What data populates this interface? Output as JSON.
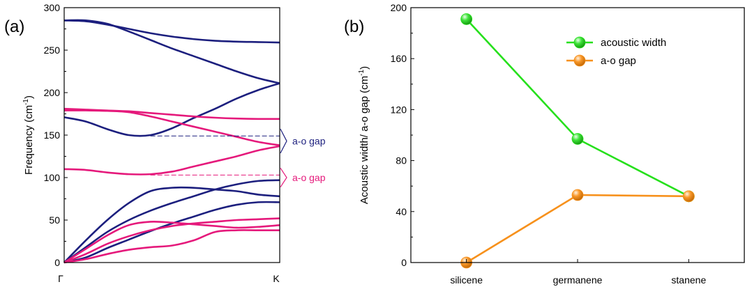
{
  "chart_data": [
    {
      "panel_label": "(a)",
      "type": "line",
      "ylabel": "Frequency (cm",
      "ylabel_sup": "-1",
      "ylabel_close": ")",
      "ylim": [
        0,
        300
      ],
      "yticks": [
        "0",
        "50",
        "100",
        "150",
        "200",
        "250",
        "300"
      ],
      "xticks": [
        "Γ",
        "K"
      ],
      "colors": {
        "navy": "#1c1f7e",
        "magenta": "#e5197b"
      },
      "series": [
        {
          "color": "navy",
          "x": [
            0,
            0.1,
            0.2,
            0.3,
            0.4,
            0.5,
            0.6,
            0.7,
            0.8,
            0.9,
            1.0
          ],
          "y": [
            285,
            284,
            280,
            275,
            270,
            266,
            263,
            261,
            260,
            259.5,
            259
          ]
        },
        {
          "color": "navy",
          "x": [
            0,
            0.1,
            0.2,
            0.3,
            0.4,
            0.5,
            0.6,
            0.7,
            0.8,
            0.9,
            1.0
          ],
          "y": [
            285,
            285,
            281,
            272,
            262,
            252,
            243,
            234,
            225,
            217,
            211
          ]
        },
        {
          "color": "navy",
          "x": [
            0,
            0.1,
            0.2,
            0.3,
            0.4,
            0.5,
            0.6,
            0.7,
            0.8,
            0.9,
            1.0
          ],
          "y": [
            171,
            166,
            157,
            150,
            150,
            158,
            170,
            181,
            193,
            203,
            211
          ]
        },
        {
          "color": "magenta",
          "x": [
            0,
            0.1,
            0.2,
            0.3,
            0.4,
            0.5,
            0.6,
            0.7,
            0.8,
            0.9,
            1.0
          ],
          "y": [
            181,
            180,
            179,
            178,
            176,
            174,
            172,
            170.5,
            169.5,
            169,
            169
          ]
        },
        {
          "color": "magenta",
          "x": [
            0,
            0.1,
            0.2,
            0.3,
            0.4,
            0.5,
            0.6,
            0.7,
            0.8,
            0.9,
            1.0
          ],
          "y": [
            179,
            179,
            178.5,
            177,
            172,
            166,
            160,
            154,
            148,
            142,
            138
          ]
        },
        {
          "color": "magenta",
          "x": [
            0,
            0.1,
            0.2,
            0.3,
            0.4,
            0.5,
            0.6,
            0.7,
            0.8,
            0.9,
            1.0
          ],
          "y": [
            110,
            109,
            106,
            104,
            104,
            107,
            113,
            119,
            125,
            132,
            137
          ]
        },
        {
          "color": "navy",
          "x": [
            0,
            0.1,
            0.2,
            0.3,
            0.4,
            0.5,
            0.6,
            0.7,
            0.8,
            0.9,
            1.0
          ],
          "y": [
            0,
            26,
            50,
            70,
            84,
            88,
            88,
            86,
            84,
            80,
            78
          ]
        },
        {
          "color": "navy",
          "x": [
            0,
            0.1,
            0.2,
            0.3,
            0.4,
            0.5,
            0.6,
            0.7,
            0.8,
            0.9,
            1.0
          ],
          "y": [
            0,
            18,
            36,
            50,
            61,
            70,
            78,
            86,
            92,
            96,
            97
          ]
        },
        {
          "color": "navy",
          "x": [
            0,
            0.1,
            0.2,
            0.3,
            0.4,
            0.5,
            0.6,
            0.7,
            0.8,
            0.9,
            1.0
          ],
          "y": [
            0,
            6,
            17,
            27,
            37,
            46,
            54,
            62,
            68,
            71,
            71
          ]
        },
        {
          "color": "magenta",
          "x": [
            0,
            0.1,
            0.2,
            0.3,
            0.4,
            0.5,
            0.6,
            0.7,
            0.8,
            0.9,
            1.0
          ],
          "y": [
            0,
            16,
            32,
            44,
            48,
            47,
            45,
            43,
            41,
            42,
            44
          ]
        },
        {
          "color": "magenta",
          "x": [
            0,
            0.1,
            0.2,
            0.3,
            0.4,
            0.5,
            0.6,
            0.7,
            0.8,
            0.9,
            1.0
          ],
          "y": [
            0,
            10,
            22,
            31,
            38,
            43,
            46,
            48,
            50,
            51,
            52
          ]
        },
        {
          "color": "magenta",
          "x": [
            0,
            0.1,
            0.2,
            0.3,
            0.4,
            0.5,
            0.6,
            0.7,
            0.8,
            0.9,
            1.0
          ],
          "y": [
            0,
            4,
            10,
            15,
            18,
            20,
            26,
            36,
            38,
            38,
            38
          ]
        }
      ],
      "gap_lines": [
        {
          "color": "navy",
          "y": 149,
          "x": [
            0.4,
            1.0
          ]
        },
        {
          "color": "magenta",
          "y": 103,
          "x": [
            0.4,
            1.0
          ]
        }
      ],
      "annotations": [
        {
          "text": "a-o gap",
          "color": "navy",
          "from": 137,
          "to": 149
        },
        {
          "text": "a-o gap",
          "color": "magenta",
          "from": 103,
          "to": 97
        }
      ]
    },
    {
      "panel_label": "(b)",
      "type": "line",
      "ylabel": "Acoustic width/ a-o gap (cm",
      "ylabel_sup": "-1",
      "ylabel_close": ")",
      "ylim": [
        0,
        200
      ],
      "yticks": [
        "0",
        "40",
        "80",
        "120",
        "160",
        "200"
      ],
      "categories": [
        "silicene",
        "germanene",
        "stanene"
      ],
      "series": [
        {
          "name": "acoustic width",
          "color": "#26e01c",
          "values": [
            191,
            97,
            52
          ]
        },
        {
          "name": "a-o gap",
          "color": "#f7911c",
          "values": [
            0,
            53,
            52
          ]
        }
      ],
      "legend": "top-right"
    }
  ]
}
